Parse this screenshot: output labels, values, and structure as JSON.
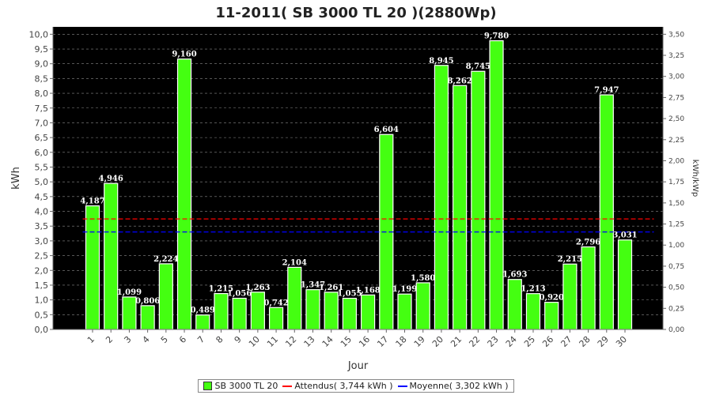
{
  "title": "11-2011( SB 3000 TL 20 )(2880Wp)",
  "chart_data": {
    "type": "bar",
    "xlabel": "Jour",
    "ylabel": "kWh",
    "y2label": "kWh/kWp",
    "ylim": [
      0,
      10.25
    ],
    "y2lim": [
      0,
      3.5875
    ],
    "yticks": [
      "0,0",
      "0,5",
      "1,0",
      "1,5",
      "2,0",
      "2,5",
      "3,0",
      "3,5",
      "4,0",
      "4,5",
      "5,0",
      "5,5",
      "6,0",
      "6,5",
      "7,0",
      "7,5",
      "8,0",
      "8,5",
      "9,0",
      "9,5",
      "10,0"
    ],
    "y2ticks": [
      "0,00",
      "0,25",
      "0,50",
      "0,75",
      "1,00",
      "1,25",
      "1,50",
      "1,75",
      "2,00",
      "2,25",
      "2,50",
      "2,75",
      "3,00",
      "3,25",
      "3,50"
    ],
    "categories": [
      "1",
      "2",
      "3",
      "4",
      "5",
      "6",
      "7",
      "8",
      "9",
      "10",
      "11",
      "12",
      "13",
      "14",
      "15",
      "16",
      "17",
      "18",
      "19",
      "20",
      "21",
      "22",
      "23",
      "24",
      "25",
      "26",
      "27",
      "28",
      "29",
      "30"
    ],
    "values": [
      4.187,
      4.946,
      1.099,
      0.806,
      2.224,
      9.16,
      0.489,
      1.215,
      1.056,
      1.263,
      0.742,
      2.104,
      1.347,
      1.261,
      1.055,
      1.168,
      6.604,
      1.199,
      1.58,
      8.945,
      8.262,
      8.745,
      9.78,
      1.693,
      1.213,
      0.92,
      2.215,
      2.796,
      7.947,
      3.031
    ],
    "value_labels": [
      "4,187",
      "4,946",
      "1,099",
      "0,806",
      "2,224",
      "9,160",
      "0,489",
      "1,215",
      "1,056",
      "1,263",
      "0,742",
      "2,104",
      "1,347",
      "1,261",
      "1,055",
      "1,168",
      "6,604",
      "1,199",
      "1,580",
      "8,945",
      "8,262",
      "8,745",
      "9,780",
      "1,693",
      "1,213",
      "0,920",
      "2,215",
      "2,796",
      "7,947",
      "3,031"
    ],
    "reference_lines": [
      {
        "name": "Attendus( 3,744 kWh )",
        "value": 3.744,
        "color": "#ff0000",
        "style": "dashed"
      },
      {
        "name": "Moyenne( 3,302 kWh )",
        "value": 3.302,
        "color": "#0000ff",
        "style": "dashed"
      }
    ],
    "series_name": "SB 3000 TL 20",
    "bar_color": "#44ff11",
    "plot_background": "#000000",
    "grid": true,
    "legend_position": "bottom"
  },
  "legend": {
    "bar_label": "SB 3000 TL 20",
    "attendus_label": "Attendus( 3,744 kWh )",
    "moyenne_label": "Moyenne( 3,302 kWh )"
  }
}
